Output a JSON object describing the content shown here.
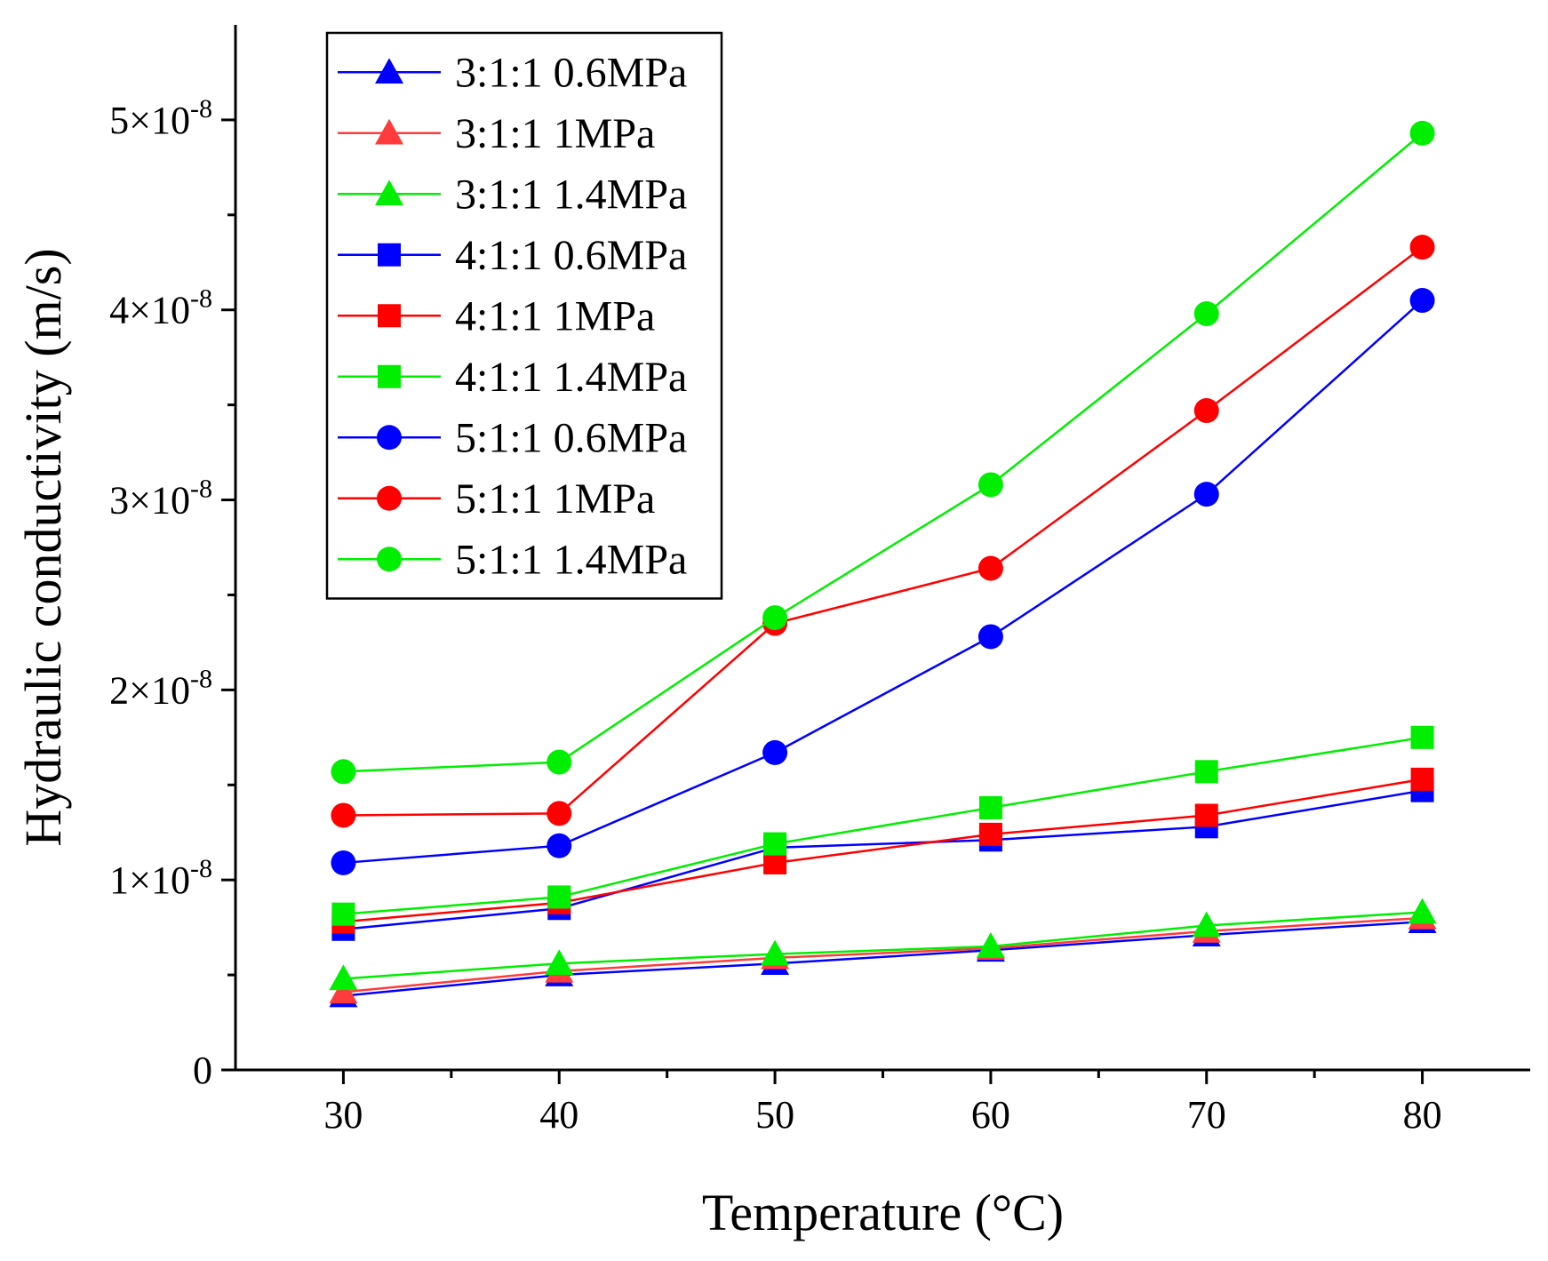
{
  "chart_data": {
    "type": "line",
    "xlabel": "Temperature (°C)",
    "ylabel": "Hydraulic conductivity (m/s)",
    "xlim": [
      25,
      85
    ],
    "ylim": [
      0,
      5.5e-08
    ],
    "x": [
      30,
      40,
      50,
      60,
      70,
      80
    ],
    "x_tick_labels": [
      "30",
      "40",
      "50",
      "60",
      "70",
      "80"
    ],
    "y_ticks": [
      {
        "value": 0,
        "mantissa": "0",
        "exponent": ""
      },
      {
        "value": 1e-08,
        "mantissa": "1×10",
        "exponent": "-8"
      },
      {
        "value": 2e-08,
        "mantissa": "2×10",
        "exponent": "-8"
      },
      {
        "value": 3e-08,
        "mantissa": "3×10",
        "exponent": "-8"
      },
      {
        "value": 4e-08,
        "mantissa": "4×10",
        "exponent": "-8"
      },
      {
        "value": 5e-08,
        "mantissa": "5×10",
        "exponent": "-8"
      }
    ],
    "legend_position": "top-left",
    "series": [
      {
        "name": "3:1:1 0.6MPa",
        "color": "#0000ff",
        "marker": "triangle",
        "values": [
          3.9e-09,
          5e-09,
          5.6e-09,
          6.3e-09,
          7.1e-09,
          7.8e-09
        ]
      },
      {
        "name": "3:1:1 1MPa",
        "color": "#ff3b3b",
        "marker": "triangle",
        "values": [
          4.1e-09,
          5.2e-09,
          5.9e-09,
          6.4e-09,
          7.3e-09,
          8e-09
        ]
      },
      {
        "name": "3:1:1 1.4MPa",
        "color": "#00ee00",
        "marker": "triangle",
        "values": [
          4.8e-09,
          5.6e-09,
          6.1e-09,
          6.5e-09,
          7.6e-09,
          8.3e-09
        ]
      },
      {
        "name": "4:1:1 0.6MPa",
        "color": "#0000ff",
        "marker": "square",
        "values": [
          7.4e-09,
          8.5e-09,
          1.17e-08,
          1.21e-08,
          1.28e-08,
          1.47e-08
        ]
      },
      {
        "name": "4:1:1 1MPa",
        "color": "#ff0000",
        "marker": "square",
        "values": [
          7.8e-09,
          8.8e-09,
          1.09e-08,
          1.24e-08,
          1.34e-08,
          1.53e-08
        ]
      },
      {
        "name": "4:1:1 1.4MPa",
        "color": "#00ee00",
        "marker": "square",
        "values": [
          8.2e-09,
          9.1e-09,
          1.19e-08,
          1.38e-08,
          1.57e-08,
          1.75e-08
        ]
      },
      {
        "name": "5:1:1 0.6MPa",
        "color": "#0000ff",
        "marker": "circle",
        "values": [
          1.09e-08,
          1.18e-08,
          1.67e-08,
          2.28e-08,
          3.03e-08,
          4.05e-08
        ]
      },
      {
        "name": "5:1:1 1MPa",
        "color": "#ff0000",
        "marker": "circle",
        "values": [
          1.34e-08,
          1.35e-08,
          2.35e-08,
          2.64e-08,
          3.47e-08,
          4.33e-08
        ]
      },
      {
        "name": "5:1:1 1.4MPa",
        "color": "#00ee00",
        "marker": "circle",
        "values": [
          1.57e-08,
          1.62e-08,
          2.38e-08,
          3.08e-08,
          3.98e-08,
          4.93e-08
        ]
      }
    ]
  }
}
